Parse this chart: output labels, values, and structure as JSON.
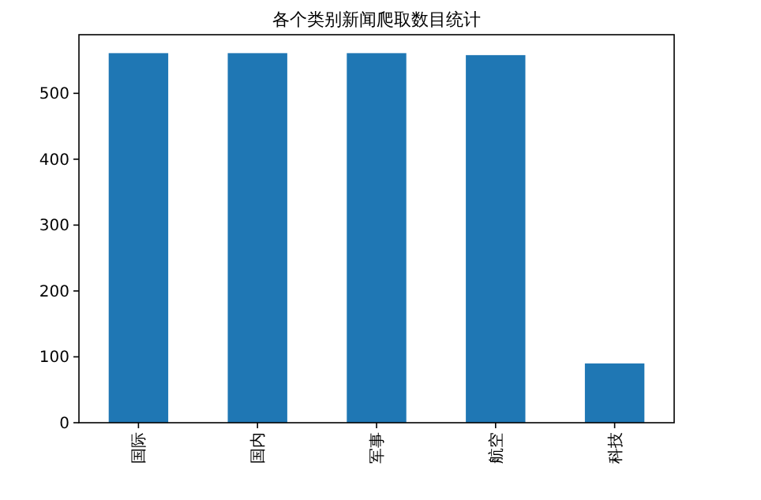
{
  "chart_data": {
    "type": "bar",
    "title": "各个类别新闻爬取数目统计",
    "categories": [
      "国际",
      "国内",
      "军事",
      "航空",
      "科技"
    ],
    "values": [
      561,
      561,
      561,
      558,
      90
    ],
    "color": "#1f77b4",
    "ylim": [
      0,
      589
    ],
    "yticks": [
      0,
      100,
      200,
      300,
      400,
      500
    ],
    "grid": false
  }
}
